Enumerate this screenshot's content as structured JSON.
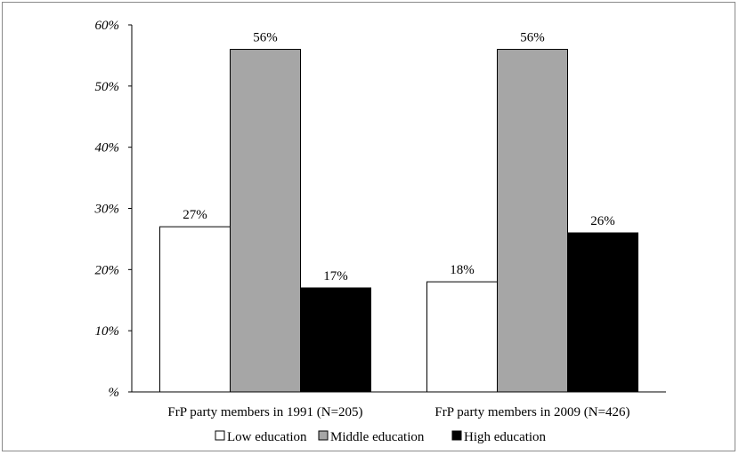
{
  "chart_data": {
    "type": "bar",
    "title": "",
    "xlabel": "",
    "ylabel": "",
    "ylim": [
      0,
      60
    ],
    "yticks": [
      0,
      10,
      20,
      30,
      40,
      50,
      60
    ],
    "ytick_labels": [
      "%",
      "10%",
      "20%",
      "30%",
      "40%",
      "50%",
      "60%"
    ],
    "grid": false,
    "legend_position": "bottom",
    "categories": [
      "FrP party members in 1991 (N=205)",
      "FrP party members in 2009 (N=426)"
    ],
    "series": [
      {
        "name": "Low education",
        "values": [
          27,
          18
        ],
        "labels": [
          "27%",
          "18%"
        ],
        "color": "#ffffff"
      },
      {
        "name": "Middle education",
        "values": [
          56,
          56
        ],
        "labels": [
          "56%",
          "56%"
        ],
        "color": "#a6a6a6"
      },
      {
        "name": "High education",
        "values": [
          17,
          26
        ],
        "labels": [
          "17%",
          "26%"
        ],
        "color": "#000000"
      }
    ]
  }
}
